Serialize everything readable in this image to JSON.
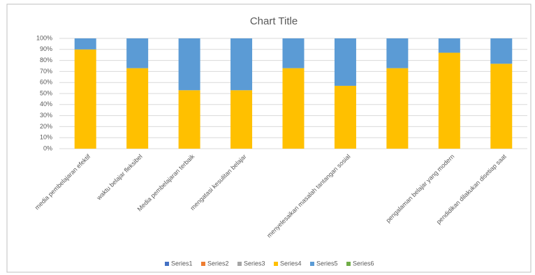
{
  "chart_data": {
    "type": "stacked_bar_100",
    "title": "Chart Title",
    "categories": [
      "media pembelajaran efektif",
      "waktu belajar fleksibel",
      "Media pembelajaran terbaik",
      "mengatasi kesulitan belajar",
      null,
      "menyelesaikan masalah tantangan sosial",
      null,
      "pengalaman belajar yang modern",
      "pendidikan dilakukan disetiap saat"
    ],
    "series": [
      {
        "name": "Series1",
        "color": "#4472c4",
        "values": [
          0,
          0,
          0,
          0,
          0,
          0,
          0,
          0,
          0
        ]
      },
      {
        "name": "Series2",
        "color": "#ed7d31",
        "values": [
          0,
          0,
          0,
          0,
          0,
          0,
          0,
          0,
          0
        ]
      },
      {
        "name": "Series3",
        "color": "#a5a5a5",
        "values": [
          0,
          0,
          0,
          0,
          0,
          0,
          0,
          0,
          0
        ]
      },
      {
        "name": "Series4",
        "color": "#ffc000",
        "values": [
          90,
          73,
          53,
          53,
          73,
          57,
          73,
          87,
          77
        ]
      },
      {
        "name": "Series5",
        "color": "#5b9bd5",
        "values": [
          10,
          27,
          47,
          47,
          27,
          43,
          27,
          13,
          23
        ]
      },
      {
        "name": "Series6",
        "color": "#70ad47",
        "values": [
          0,
          0,
          0,
          0,
          0,
          0,
          0,
          0,
          0
        ]
      }
    ],
    "ylim": [
      0,
      100
    ],
    "yticks": [
      {
        "value": 0,
        "label": "0%"
      },
      {
        "value": 10,
        "label": "10%"
      },
      {
        "value": 20,
        "label": "20%"
      },
      {
        "value": 30,
        "label": "30%"
      },
      {
        "value": 40,
        "label": "40%"
      },
      {
        "value": 50,
        "label": "50%"
      },
      {
        "value": 60,
        "label": "60%"
      },
      {
        "value": 70,
        "label": "70%"
      },
      {
        "value": 80,
        "label": "80%"
      },
      {
        "value": 90,
        "label": "90%"
      },
      {
        "value": 100,
        "label": "100%"
      }
    ],
    "grid": true,
    "legend": "bottom"
  }
}
